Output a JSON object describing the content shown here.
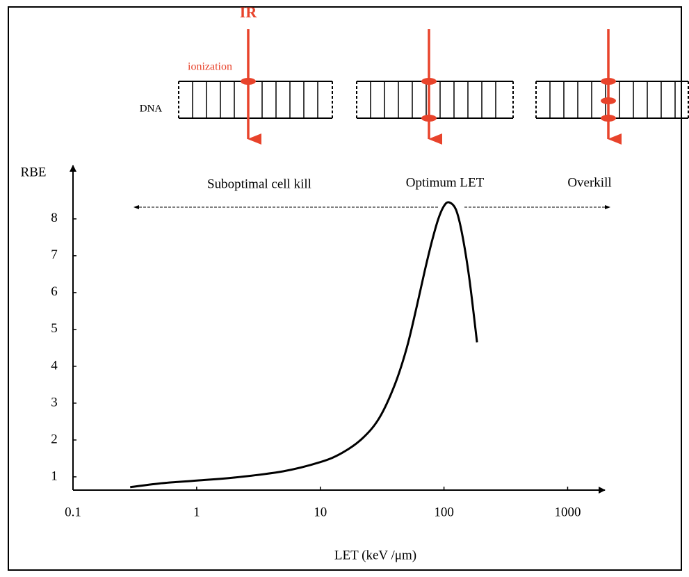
{
  "chart_data": {
    "type": "line",
    "x_label": "LET (keV /μm)",
    "y_label": "RBE",
    "annotations": [
      "Suboptimal cell kill",
      "Optimum LET",
      "Overkill"
    ],
    "diagram": {
      "beam": "IR",
      "event": "ionization",
      "strand": "DNA"
    },
    "log_x": true,
    "x": [
      0.29,
      0.5,
      1,
      2,
      5,
      10,
      15,
      22,
      30,
      40,
      50,
      60,
      70,
      80,
      90,
      100,
      110,
      125,
      140,
      160,
      185
    ],
    "series": [
      {
        "color": "#000000",
        "values": [
          0.72,
          0.82,
          0.9,
          0.98,
          1.15,
          1.4,
          1.65,
          2.05,
          2.6,
          3.5,
          4.5,
          5.6,
          6.6,
          7.4,
          8.0,
          8.35,
          8.45,
          8.25,
          7.6,
          6.4,
          4.65
        ]
      }
    ],
    "xlim": [
      0.1,
      2000
    ],
    "ylim": [
      0.64,
      9.45
    ],
    "xticks": [
      0.1,
      1,
      10,
      100,
      1000
    ],
    "yticks": [
      1,
      2,
      3,
      4,
      5,
      6,
      7,
      8
    ]
  }
}
